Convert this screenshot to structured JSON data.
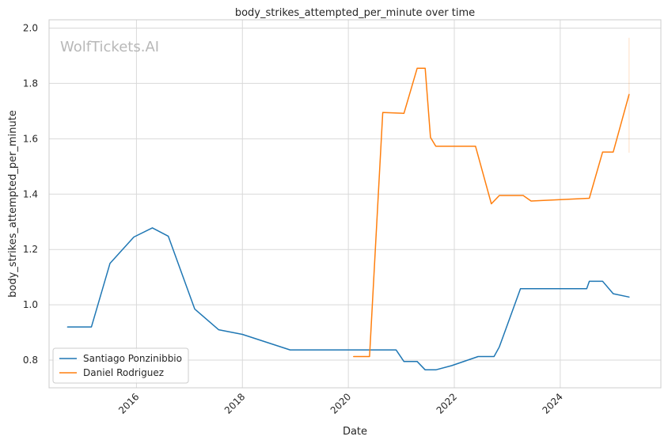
{
  "chart_data": {
    "type": "line",
    "title": "body_strikes_attempted_per_minute over time",
    "xlabel": "Date",
    "ylabel": "body_strikes_attempted_per_minute",
    "watermark": "WolfTickets.AI",
    "xlim": [
      2014.35,
      2025.9
    ],
    "ylim": [
      0.7,
      2.03
    ],
    "x_ticks": [
      2016,
      2018,
      2020,
      2022,
      2024
    ],
    "x_tick_labels": [
      "2016",
      "2018",
      "2020",
      "2022",
      "2024"
    ],
    "y_ticks": [
      0.8,
      1.0,
      1.2,
      1.4,
      1.6,
      1.8,
      2.0
    ],
    "y_tick_labels": [
      "0.8",
      "1.0",
      "1.2",
      "1.4",
      "1.6",
      "1.8",
      "2.0"
    ],
    "grid": true,
    "legend_position": "lower-left",
    "series": [
      {
        "name": "Santiago Ponzinibbio",
        "color": "#1f77b4",
        "x": [
          2014.7,
          2015.15,
          2015.5,
          2015.95,
          2016.3,
          2016.6,
          2017.1,
          2017.55,
          2018.0,
          2018.9,
          2019.5,
          2020.2,
          2020.9,
          2021.05,
          2021.3,
          2021.45,
          2021.65,
          2021.95,
          2022.45,
          2022.75,
          2022.85,
          2023.25,
          2023.6,
          2024.5,
          2024.55,
          2024.8,
          2025.0,
          2025.3
        ],
        "y": [
          0.92,
          0.92,
          1.15,
          1.245,
          1.278,
          1.248,
          0.985,
          0.91,
          0.893,
          0.837,
          0.837,
          0.837,
          0.837,
          0.795,
          0.795,
          0.765,
          0.765,
          0.78,
          0.813,
          0.813,
          0.848,
          1.058,
          1.058,
          1.058,
          1.085,
          1.085,
          1.04,
          1.028
        ]
      },
      {
        "name": "Daniel Rodriguez",
        "color": "#ff7f0e",
        "x": [
          2020.1,
          2020.4,
          2020.65,
          2021.05,
          2021.3,
          2021.45,
          2021.55,
          2021.65,
          2022.4,
          2022.7,
          2022.85,
          2023.3,
          2023.45,
          2024.55,
          2024.8,
          2025.0,
          2025.3
        ],
        "y": [
          0.813,
          0.813,
          1.695,
          1.692,
          1.855,
          1.855,
          1.605,
          1.573,
          1.573,
          1.365,
          1.395,
          1.395,
          1.375,
          1.385,
          1.552,
          1.552,
          1.76
        ]
      }
    ],
    "error_bar": {
      "x": 2025.3,
      "low": 1.55,
      "high": 1.965,
      "color": "#ff7f0e"
    }
  }
}
